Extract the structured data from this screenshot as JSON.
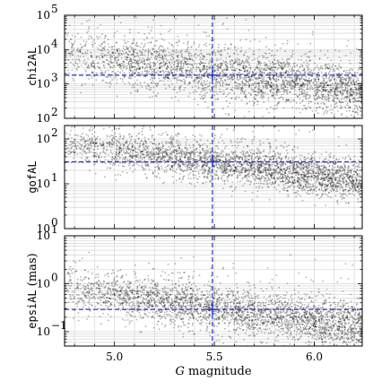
{
  "chart_data": [
    {
      "type": "scatter",
      "xlabel_var": "G",
      "xlabel_rest": " magnitude",
      "ylabel": "chi2AL",
      "ylabel_suffix": "",
      "yscale": "log",
      "ylim": [
        100,
        100000
      ],
      "xlim": [
        4.75,
        6.24
      ],
      "yticks": [
        {
          "value": 100,
          "mant": "10",
          "exp": "2"
        },
        {
          "value": 1000,
          "mant": "10",
          "exp": "3"
        },
        {
          "value": 10000,
          "mant": "10",
          "exp": "4"
        },
        {
          "value": 100000,
          "mant": "10",
          "exp": "5"
        }
      ],
      "grid": true,
      "reference": {
        "x": 5.49,
        "y": 1800
      },
      "trend": {
        "x0": 4.8,
        "y0": 6500,
        "x1": 6.2,
        "y1": 700,
        "spread_dex": 0.38
      },
      "n_points": 3200,
      "point_color": "#000000",
      "ref_color": "#2530d6"
    },
    {
      "type": "scatter",
      "xlabel_var": "G",
      "xlabel_rest": " magnitude",
      "ylabel": "gofAL",
      "ylabel_suffix": "",
      "yscale": "log",
      "ylim": [
        1,
        200
      ],
      "xlim": [
        4.75,
        6.24
      ],
      "yticks": [
        {
          "value": 1,
          "mant": "10",
          "exp": "0"
        },
        {
          "value": 10,
          "mant": "10",
          "exp": "1"
        },
        {
          "value": 100,
          "mant": "10",
          "exp": "2"
        }
      ],
      "grid": true,
      "reference": {
        "x": 5.49,
        "y": 31
      },
      "trend": {
        "x0": 4.8,
        "y0": 75,
        "x1": 6.2,
        "y1": 12,
        "spread_dex": 0.22
      },
      "n_points": 3200,
      "point_color": "#000000",
      "ref_color": "#2530d6"
    },
    {
      "type": "scatter",
      "xlabel_var": "G",
      "xlabel_rest": " magnitude",
      "ylabel": "epsiAL",
      "ylabel_suffix": " (mas)",
      "yscale": "log",
      "ylim": [
        0.05,
        10
      ],
      "xlim": [
        4.75,
        6.24
      ],
      "yticks": [
        {
          "value": 0.1,
          "mant": "10",
          "exp": "−1"
        },
        {
          "value": 1,
          "mant": "10",
          "exp": "0"
        },
        {
          "value": 10,
          "mant": "10",
          "exp": "1"
        }
      ],
      "grid": true,
      "reference": {
        "x": 5.49,
        "y": 0.29
      },
      "trend": {
        "x0": 4.8,
        "y0": 0.75,
        "x1": 6.2,
        "y1": 0.13,
        "spread_dex": 0.24
      },
      "n_points": 3200,
      "point_color": "#000000",
      "ref_color": "#2530d6"
    }
  ],
  "x_axis": {
    "ticks": [
      {
        "value": 5.0,
        "label": "5.0"
      },
      {
        "value": 5.5,
        "label": "5.5"
      },
      {
        "value": 6.0,
        "label": "6.0"
      }
    ],
    "label_var": "G",
    "label_rest": " magnitude"
  }
}
